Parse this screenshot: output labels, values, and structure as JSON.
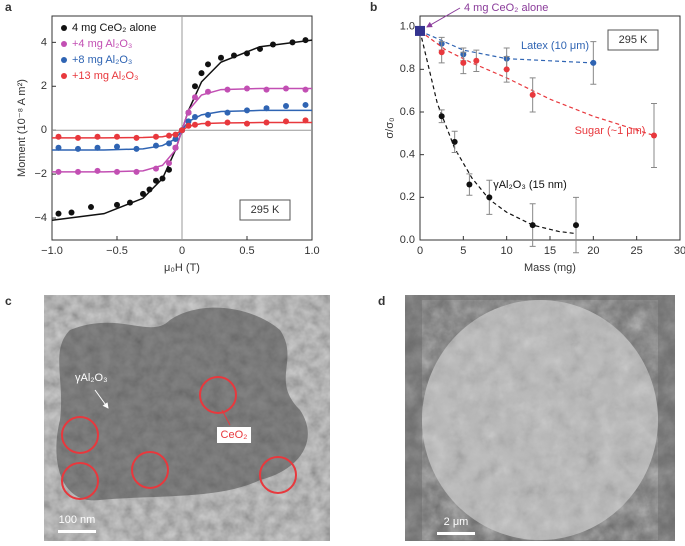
{
  "chart_data": [
    {
      "type": "scatter",
      "panel_label": "a",
      "x_label": "μ₀H (T)",
      "y_label": "Moment (10⁻⁸ A m²)",
      "annotation": "295 K",
      "xlim": [
        -1,
        1
      ],
      "ylim": [
        -5,
        5.2
      ],
      "xticks": [
        {
          "value": -1,
          "label": "−1.0"
        },
        {
          "value": -0.5,
          "label": "−0.5"
        },
        0,
        0.5,
        {
          "value": 1,
          "label": "1.0"
        }
      ],
      "yticks": [
        {
          "value": -4,
          "label": "−4"
        },
        {
          "value": -2,
          "label": "−2"
        },
        0,
        2,
        4
      ],
      "legend": "top-left",
      "series": [
        {
          "name": "4 mg CeO₂ alone",
          "color": "#111111",
          "x": [
            -0.95,
            -0.85,
            -0.7,
            -0.5,
            -0.4,
            -0.3,
            -0.25,
            -0.2,
            -0.15,
            -0.1,
            -0.05,
            0,
            0.05,
            0.1,
            0.15,
            0.2,
            0.3,
            0.4,
            0.5,
            0.6,
            0.7,
            0.85,
            0.95
          ],
          "values": [
            -3.8,
            -3.75,
            -3.5,
            -3.4,
            -3.3,
            -2.9,
            -2.7,
            -2.3,
            -2.2,
            -1.8,
            -0.8,
            0,
            0.8,
            2.0,
            2.6,
            3.0,
            3.3,
            3.4,
            3.5,
            3.7,
            3.9,
            4.0,
            4.1
          ],
          "fit": {
            "x": [
              -1,
              -0.6,
              -0.3,
              -0.15,
              -0.05,
              0,
              0.05,
              0.15,
              0.3,
              0.6,
              1
            ],
            "values": [
              -4.1,
              -3.8,
              -3.1,
              -2.2,
              -0.9,
              0,
              0.9,
              2.2,
              3.1,
              3.8,
              4.1
            ]
          }
        },
        {
          "name": "+4 mg Al₂O₃",
          "color": "#c24fb3",
          "x": [
            -0.95,
            -0.8,
            -0.65,
            -0.5,
            -0.35,
            -0.2,
            -0.1,
            -0.05,
            0,
            0.05,
            0.1,
            0.2,
            0.35,
            0.5,
            0.65,
            0.8,
            0.95
          ],
          "values": [
            -1.9,
            -1.9,
            -1.85,
            -1.9,
            -1.9,
            -1.75,
            -1.5,
            -0.8,
            0,
            0.8,
            1.5,
            1.75,
            1.85,
            1.9,
            1.85,
            1.9,
            1.85
          ],
          "fit": {
            "x": [
              -1,
              -0.6,
              -0.3,
              -0.15,
              -0.05,
              0,
              0.05,
              0.15,
              0.3,
              0.6,
              1
            ],
            "values": [
              -1.9,
              -1.9,
              -1.85,
              -1.6,
              -0.9,
              0,
              0.9,
              1.6,
              1.85,
              1.9,
              1.9
            ]
          }
        },
        {
          "name": "+8 mg Al₂O₃",
          "color": "#2f64b3",
          "x": [
            -0.95,
            -0.8,
            -0.65,
            -0.5,
            -0.35,
            -0.2,
            -0.1,
            -0.05,
            0,
            0.05,
            0.1,
            0.2,
            0.35,
            0.5,
            0.65,
            0.8,
            0.95
          ],
          "values": [
            -0.8,
            -0.85,
            -0.8,
            -0.75,
            -0.85,
            -0.7,
            -0.6,
            -0.4,
            0,
            0.4,
            0.6,
            0.7,
            0.8,
            0.9,
            1.0,
            1.1,
            1.15
          ],
          "fit": {
            "x": [
              -1,
              -0.6,
              -0.3,
              -0.15,
              -0.05,
              0,
              0.05,
              0.15,
              0.3,
              0.6,
              1
            ],
            "values": [
              -0.9,
              -0.9,
              -0.85,
              -0.7,
              -0.4,
              0,
              0.4,
              0.7,
              0.85,
              0.9,
              0.9
            ]
          }
        },
        {
          "name": "+13 mg Al₂O₃",
          "color": "#e8383d",
          "x": [
            -0.95,
            -0.8,
            -0.65,
            -0.5,
            -0.35,
            -0.2,
            -0.1,
            -0.05,
            0,
            0.05,
            0.1,
            0.2,
            0.35,
            0.5,
            0.65,
            0.8,
            0.95
          ],
          "values": [
            -0.3,
            -0.35,
            -0.3,
            -0.3,
            -0.35,
            -0.3,
            -0.25,
            -0.2,
            0,
            0.2,
            0.25,
            0.3,
            0.35,
            0.3,
            0.35,
            0.4,
            0.45
          ],
          "fit": {
            "x": [
              -1,
              -0.6,
              -0.3,
              -0.15,
              -0.05,
              0,
              0.05,
              0.15,
              0.3,
              0.6,
              1
            ],
            "values": [
              -0.35,
              -0.35,
              -0.33,
              -0.3,
              -0.18,
              0,
              0.18,
              0.3,
              0.33,
              0.35,
              0.35
            ]
          }
        }
      ]
    },
    {
      "type": "errorbar",
      "panel_label": "b",
      "x_label": "Mass (mg)",
      "y_label": "σ/σ₀",
      "annotation": "295 K",
      "xlim": [
        0,
        30
      ],
      "ylim": [
        0,
        1.05
      ],
      "xticks": [
        0,
        5,
        10,
        15,
        20,
        25,
        30
      ],
      "yticks": [
        {
          "value": 0,
          "label": "0.0"
        },
        0.2,
        0.4,
        0.6,
        0.8,
        {
          "value": 1,
          "label": "1.0"
        }
      ],
      "reference": {
        "name": "4 mg CeO₂ alone",
        "x": 0,
        "value": 0.98,
        "color": "#33338f"
      },
      "series": [
        {
          "name": "Latex (10 μm)",
          "color": "#2f64b3",
          "x": [
            2.5,
            5,
            10,
            20
          ],
          "values": [
            0.92,
            0.87,
            0.85,
            0.83
          ],
          "errors": [
            0.03,
            0.03,
            0.05,
            0.1
          ],
          "fit": {
            "x": [
              0,
              5,
              10,
              15,
              20
            ],
            "values": [
              0.98,
              0.89,
              0.85,
              0.84,
              0.83
            ]
          }
        },
        {
          "name": "Sugar (~1 μm)",
          "color": "#e8383d",
          "x": [
            2.5,
            5,
            6.5,
            10,
            13,
            27
          ],
          "values": [
            0.88,
            0.83,
            0.84,
            0.8,
            0.68,
            0.49
          ],
          "errors": [
            0.05,
            0.05,
            0.05,
            0.06,
            0.08,
            0.15
          ],
          "fit": {
            "x": [
              0,
              3,
              6,
              10,
              15,
              20,
              27
            ],
            "values": [
              0.98,
              0.89,
              0.83,
              0.76,
              0.66,
              0.58,
              0.49
            ]
          }
        },
        {
          "name": "γAl₂O₃ (15 nm)",
          "color": "#111111",
          "x": [
            2.5,
            4,
            5.7,
            8,
            13,
            18
          ],
          "values": [
            0.58,
            0.46,
            0.26,
            0.2,
            0.07,
            0.07
          ],
          "errors": [
            0.03,
            0.05,
            0.05,
            0.08,
            0.1,
            0.13
          ],
          "fit": {
            "x": [
              0,
              2,
              4,
              6,
              8,
              10,
              13,
              16,
              18
            ],
            "values": [
              0.98,
              0.64,
              0.43,
              0.29,
              0.19,
              0.13,
              0.07,
              0.04,
              0.03
            ]
          }
        }
      ]
    }
  ],
  "images": [
    {
      "panel_label": "c",
      "labels": [
        "γAl₂O₃",
        "CeO₂"
      ],
      "scale_bar": "100 nm"
    },
    {
      "panel_label": "d",
      "scale_bar": "2 μm"
    }
  ]
}
